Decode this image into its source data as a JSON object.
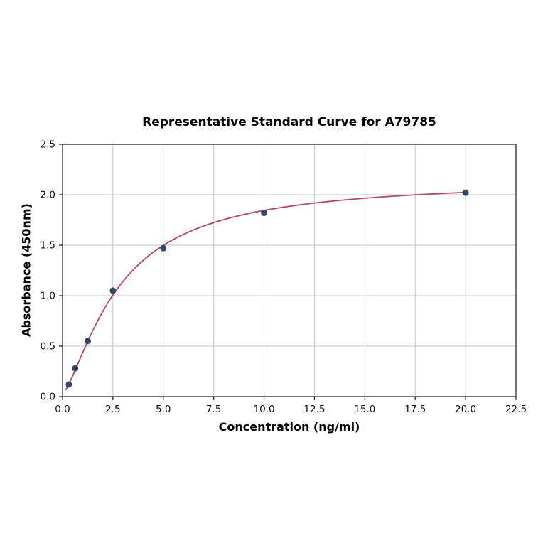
{
  "page": {
    "background_color": "#ffffff"
  },
  "chart_data": {
    "type": "scatter",
    "title": "Representative Standard Curve for A79785",
    "xlabel": "Concentration (ng/ml)",
    "ylabel": "Absorbance (450nm)",
    "x": [
      0.3125,
      0.625,
      1.25,
      2.5,
      5,
      10,
      20
    ],
    "y": [
      0.12,
      0.28,
      0.55,
      1.05,
      1.47,
      1.82,
      2.02
    ],
    "xlim": [
      0,
      22.5
    ],
    "ylim": [
      0,
      2.5
    ],
    "xticks": [
      0,
      2.5,
      5,
      7.5,
      10,
      12.5,
      15,
      17.5,
      20,
      22.5
    ],
    "xtick_labels": [
      "0.0",
      "2.5",
      "5.0",
      "7.5",
      "10.0",
      "12.5",
      "15.0",
      "17.5",
      "20.0",
      "22.5"
    ],
    "yticks": [
      0,
      0.5,
      1,
      1.5,
      2,
      2.5
    ],
    "ytick_labels": [
      "0.0",
      "0.5",
      "1.0",
      "1.5",
      "2.0",
      "2.5"
    ],
    "grid": true,
    "legend": "none",
    "colors": {
      "curve_line": "#b5446e",
      "data_point": "#2f4868",
      "grid_line": "#c6c6c6",
      "plot_border": "#2b2b2b",
      "tick_mark": "#1a1a1a",
      "tick_label": "#111111"
    },
    "curve_fit": {
      "model": "4PL",
      "a": 0.03,
      "b": 1.4,
      "c": 2.8,
      "d": 2.15,
      "x_start": 0.15,
      "x_end": 20
    }
  }
}
